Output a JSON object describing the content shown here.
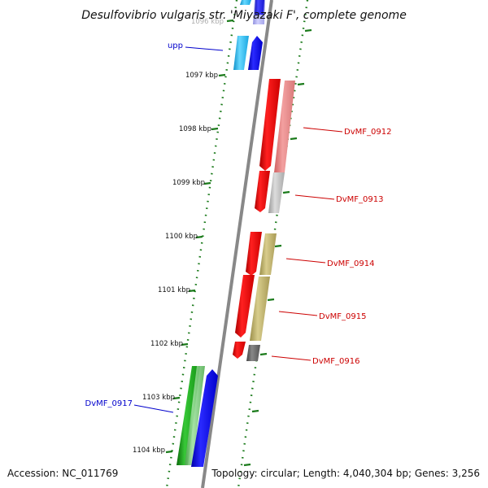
{
  "title": "Desulfovibrio vulgaris str. 'Miyazaki F', complete genome",
  "footer": {
    "accession": "Accession: NC_011769",
    "summary": "Topology: circular; Length: 4,040,304 bp; Genes: 3,256"
  },
  "kbp_labels": [
    "1096 kbp",
    "1097 kbp",
    "1098 kbp",
    "1099 kbp",
    "1100 kbp",
    "1101 kbp",
    "1102 kbp",
    "1103 kbp",
    "1104 kbp"
  ],
  "genes": [
    {
      "name": "upp",
      "color": "#0000cc"
    },
    {
      "name": "DvMF_0912",
      "color": "#cc0000"
    },
    {
      "name": "DvMF_0913",
      "color": "#cc0000"
    },
    {
      "name": "DvMF_0914",
      "color": "#cc0000"
    },
    {
      "name": "DvMF_0915",
      "color": "#cc0000"
    },
    {
      "name": "DvMF_0916",
      "color": "#cc0000"
    },
    {
      "name": "DvMF_0917",
      "color": "#0000cc"
    }
  ],
  "colors": {
    "cog_tick": "#1a7a1a",
    "backbone": "#888888",
    "forward_gene": "#ee0000",
    "reverse_gene": "#0000ee",
    "rna_gene": "#1aa01a",
    "cyan_gene": "#22bbee"
  }
}
